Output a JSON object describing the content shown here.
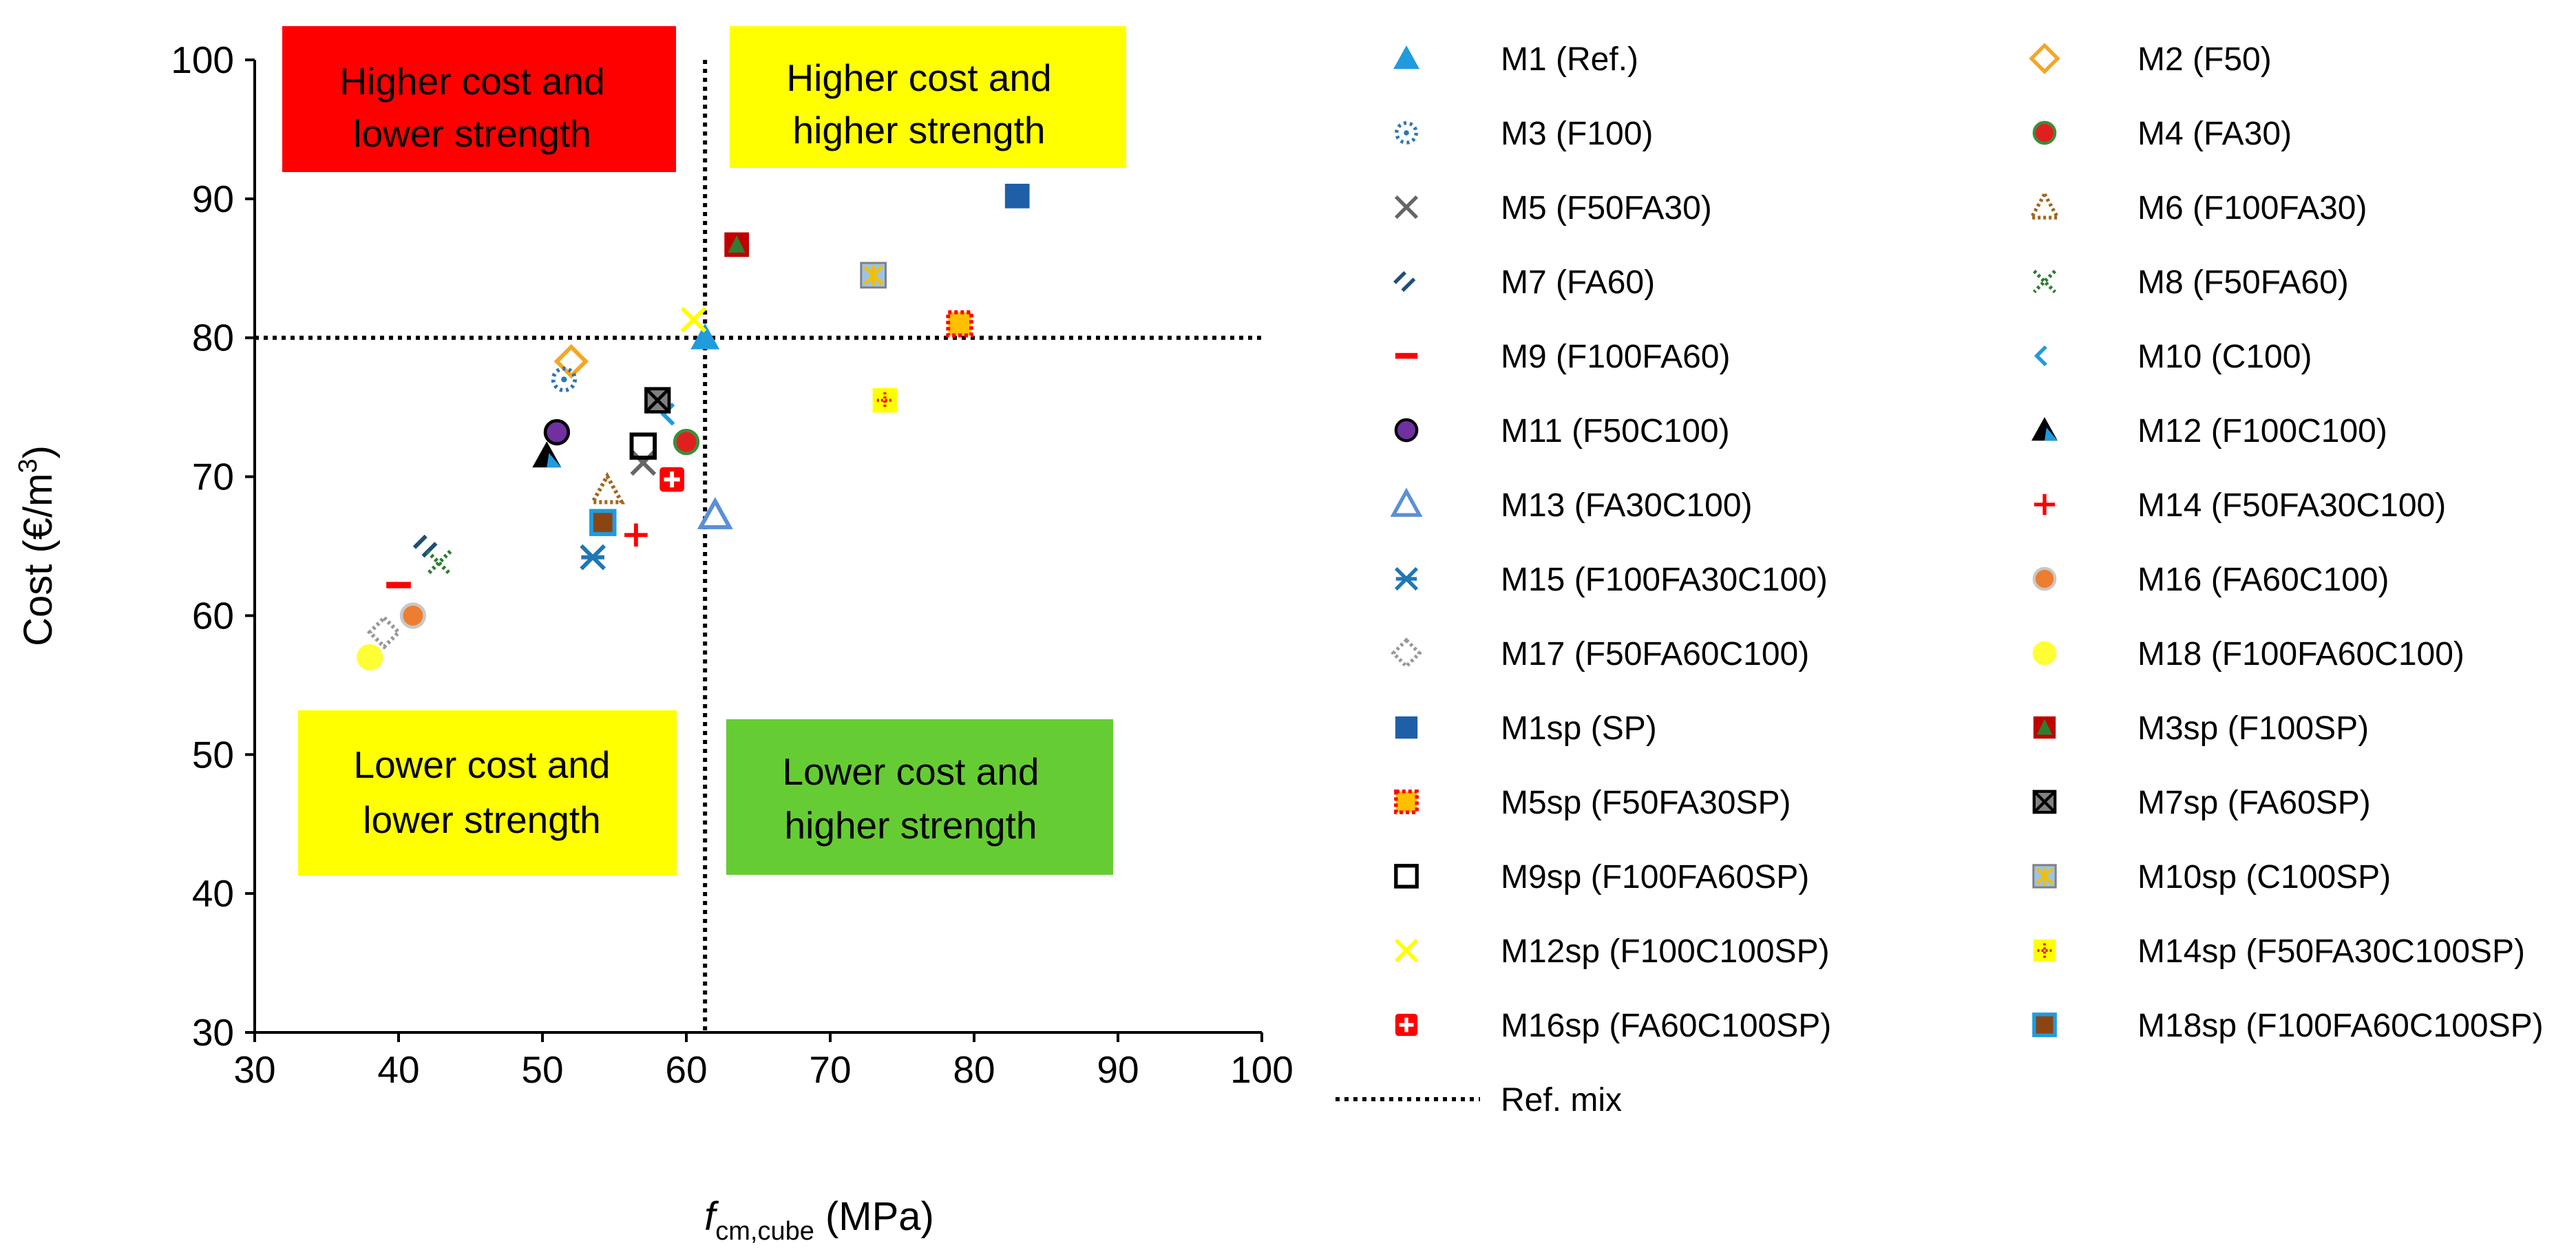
{
  "chart_data": {
    "type": "scatter",
    "xlabel": {
      "italic": "f",
      "subscript": "cm,cube",
      "unit": " (MPa)"
    },
    "ylabel": {
      "prefix": "Cost (€/m",
      "superscript": "3",
      "suffix": ")"
    },
    "xlim": [
      30,
      100
    ],
    "ylim": [
      30,
      100
    ],
    "xticks": [
      30,
      40,
      50,
      60,
      70,
      80,
      90,
      100
    ],
    "yticks": [
      30,
      40,
      50,
      60,
      70,
      80,
      90,
      100
    ],
    "reference_lines": {
      "x": 61.3,
      "y": 80,
      "legend_label": "Ref. mix"
    },
    "quadrants": [
      {
        "id": "tl",
        "lines": [
          "Higher cost and",
          "lower strength"
        ],
        "color": "#ff0000"
      },
      {
        "id": "tr",
        "lines": [
          "Higher cost and",
          "higher strength"
        ],
        "color": "#ffff00"
      },
      {
        "id": "bl",
        "lines": [
          "Lower cost and",
          "lower strength"
        ],
        "color": "#ffff00"
      },
      {
        "id": "br",
        "lines": [
          "Lower cost and",
          "higher strength"
        ],
        "color": "#66cc33"
      }
    ],
    "series": [
      {
        "name": "M1 (Ref.)",
        "x": 61.3,
        "y": 80.0,
        "marker": "triangle",
        "fill": "#1f9bde",
        "stroke": "#1f9bde"
      },
      {
        "name": "M2 (F50)",
        "x": 52.0,
        "y": 78.3,
        "marker": "diamond-open",
        "fill": "none",
        "stroke": "#f5a623"
      },
      {
        "name": "M3 (F100)",
        "x": 51.5,
        "y": 77.0,
        "marker": "dotted-circle",
        "fill": "none",
        "stroke": "#2e75b6"
      },
      {
        "name": "M4 (FA30)",
        "x": 60.0,
        "y": 72.5,
        "marker": "circle",
        "fill": "#e02020",
        "stroke": "#3a8f3a"
      },
      {
        "name": "M5 (F50FA30)",
        "x": 57.0,
        "y": 71.0,
        "marker": "x",
        "fill": "none",
        "stroke": "#666666"
      },
      {
        "name": "M6 (F100FA30)",
        "x": 54.5,
        "y": 69.0,
        "marker": "dotted-triangle",
        "fill": "none",
        "stroke": "#a0661e"
      },
      {
        "name": "M7 (FA60)",
        "x": 42.0,
        "y": 65.0,
        "marker": "slashes",
        "fill": "none",
        "stroke": "#1f4e79"
      },
      {
        "name": "M8 (F50FA60)",
        "x": 42.8,
        "y": 63.8,
        "marker": "dotted-x",
        "fill": "none",
        "stroke": "#2e7d32"
      },
      {
        "name": "M9 (F100FA60)",
        "x": 40.0,
        "y": 62.2,
        "marker": "dash",
        "fill": "#ff0000",
        "stroke": "#ff0000"
      },
      {
        "name": "M10 (C100)",
        "x": 59.0,
        "y": 74.5,
        "marker": "chevron",
        "fill": "none",
        "stroke": "#1f9bde"
      },
      {
        "name": "M11 (F50C100)",
        "x": 51.0,
        "y": 73.2,
        "marker": "circle",
        "fill": "#7030a0",
        "stroke": "#000000"
      },
      {
        "name": "M12 (F100C100)",
        "x": 50.3,
        "y": 71.5,
        "marker": "triangle-bicolor",
        "fill": "#1f9bde",
        "stroke": "#000000"
      },
      {
        "name": "M13 (FA30C100)",
        "x": 62.0,
        "y": 67.2,
        "marker": "triangle-open",
        "fill": "none",
        "stroke": "#5b8fd6"
      },
      {
        "name": "M14 (F50FA30C100)",
        "x": 56.5,
        "y": 65.8,
        "marker": "plus",
        "fill": "none",
        "stroke": "#ff0000"
      },
      {
        "name": "M15 (F100FA30C100)",
        "x": 53.5,
        "y": 64.2,
        "marker": "asterisk",
        "fill": "none",
        "stroke": "#1f77b4"
      },
      {
        "name": "M16 (FA60C100)",
        "x": 41.0,
        "y": 60.0,
        "marker": "circle",
        "fill": "#ed7d31",
        "stroke": "#c8c8c8"
      },
      {
        "name": "M17 (F50FA60C100)",
        "x": 39.0,
        "y": 58.8,
        "marker": "dotted-diamond",
        "fill": "none",
        "stroke": "#999999"
      },
      {
        "name": "M18 (F100FA60C100)",
        "x": 38.0,
        "y": 57.0,
        "marker": "circle",
        "fill": "#ffff33",
        "stroke": "#ffff33"
      },
      {
        "name": "M1sp (SP)",
        "x": 83.0,
        "y": 90.2,
        "marker": "square",
        "fill": "#1f5fa8",
        "stroke": "#1f5fa8"
      },
      {
        "name": "M3sp (F100SP)",
        "x": 63.5,
        "y": 86.7,
        "marker": "square-triangle",
        "fill": "#c00000",
        "stroke": "#2e7d32"
      },
      {
        "name": "M5sp (F50FA30SP)",
        "x": 79.0,
        "y": 81.0,
        "marker": "square-dotted",
        "fill": "#ffc000",
        "stroke": "#ff0000"
      },
      {
        "name": "M7sp (FA60SP)",
        "x": 58.0,
        "y": 75.5,
        "marker": "square-x",
        "fill": "#808080",
        "stroke": "#000000"
      },
      {
        "name": "M9sp (F100FA60SP)",
        "x": 57.0,
        "y": 72.2,
        "marker": "square-open",
        "fill": "none",
        "stroke": "#000000"
      },
      {
        "name": "M10sp (C100SP)",
        "x": 73.0,
        "y": 84.5,
        "marker": "square-star",
        "fill": "#9dc3e6",
        "stroke": "#f0c000"
      },
      {
        "name": "M12sp (F100C100SP)",
        "x": 60.5,
        "y": 81.3,
        "marker": "x",
        "fill": "none",
        "stroke": "#ffff00"
      },
      {
        "name": "M14sp (F50FA30C100SP)",
        "x": 73.8,
        "y": 75.5,
        "marker": "square-plus-dotted",
        "fill": "#ffff00",
        "stroke": "#ff0000"
      },
      {
        "name": "M16sp (FA60C100SP)",
        "x": 59.0,
        "y": 69.8,
        "marker": "square-plus",
        "fill": "#ff0000",
        "stroke": "#ffffff"
      },
      {
        "name": "M18sp (F100FA60C100SP)",
        "x": 54.2,
        "y": 66.7,
        "marker": "square-bordered",
        "fill": "#8b4513",
        "stroke": "#1f9bde"
      }
    ]
  }
}
